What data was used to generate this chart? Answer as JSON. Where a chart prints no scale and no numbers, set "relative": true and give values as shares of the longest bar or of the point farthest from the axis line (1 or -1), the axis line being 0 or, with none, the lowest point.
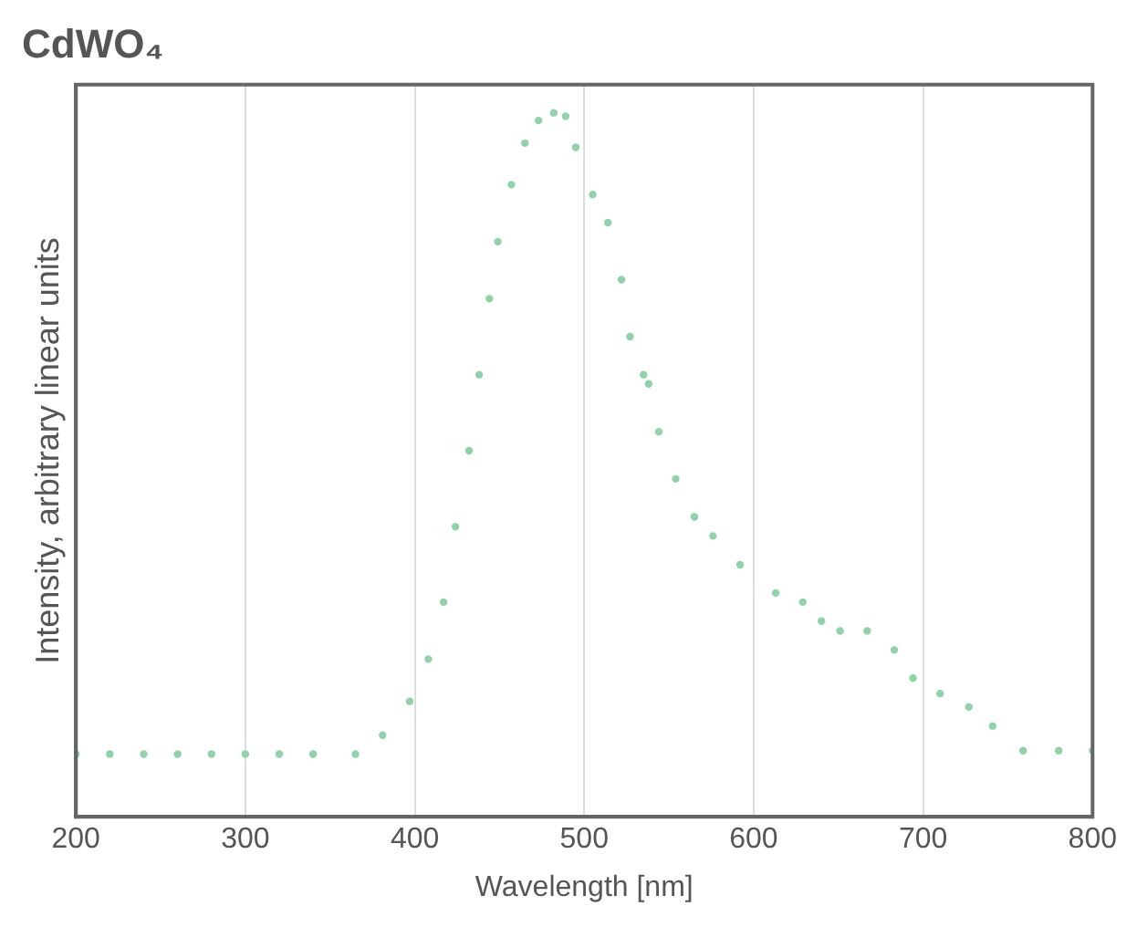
{
  "chart_data": {
    "type": "scatter",
    "title": "CdWO₄",
    "xlabel": "Wavelength [nm]",
    "ylabel": "Intensity, arbitrary linear units",
    "relative": true,
    "marker": "circle",
    "grid": "x",
    "xlim": [
      200,
      800
    ],
    "xticks": [
      200,
      300,
      400,
      500,
      600,
      700,
      800
    ],
    "series": [
      {
        "color": "#8fd3a8",
        "x": [
          200,
          220,
          240,
          260,
          280,
          300,
          320,
          340,
          365,
          381,
          397,
          408,
          417,
          424,
          432,
          438,
          444,
          449,
          457,
          465,
          473,
          482,
          489,
          495,
          505,
          514,
          522,
          527,
          535,
          538,
          544,
          554,
          565,
          576,
          592,
          613,
          629,
          640,
          651,
          667,
          683,
          694,
          710,
          727,
          741,
          759,
          780,
          800
        ],
        "values": [
          0.089,
          0.089,
          0.089,
          0.089,
          0.089,
          0.089,
          0.089,
          0.089,
          0.089,
          0.116,
          0.164,
          0.224,
          0.305,
          0.412,
          0.52,
          0.628,
          0.736,
          0.817,
          0.898,
          0.957,
          0.989,
          1,
          0.995,
          0.951,
          0.884,
          0.844,
          0.763,
          0.682,
          0.628,
          0.615,
          0.547,
          0.48,
          0.426,
          0.399,
          0.358,
          0.318,
          0.305,
          0.278,
          0.264,
          0.264,
          0.237,
          0.197,
          0.175,
          0.156,
          0.129,
          0.094,
          0.094,
          0.094
        ]
      }
    ]
  }
}
